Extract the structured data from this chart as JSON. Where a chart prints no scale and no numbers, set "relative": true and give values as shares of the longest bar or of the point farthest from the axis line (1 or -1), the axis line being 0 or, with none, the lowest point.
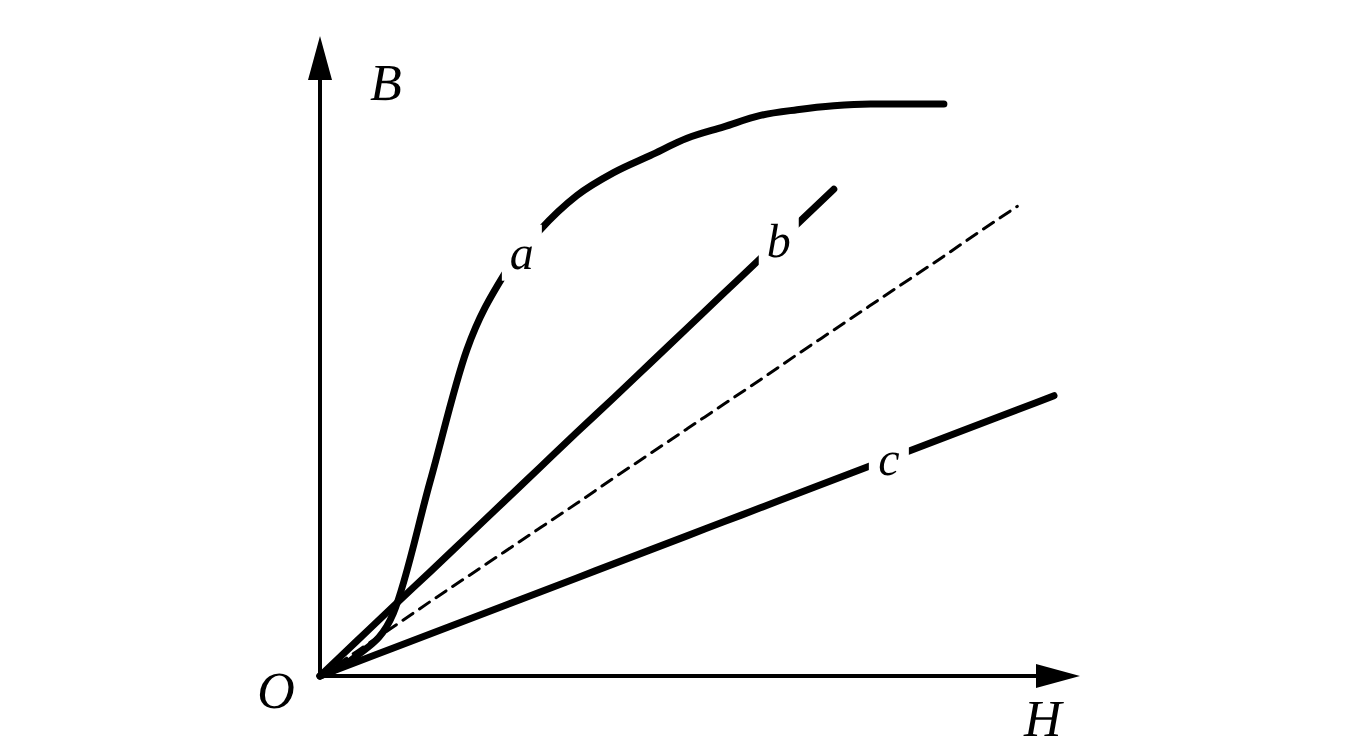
{
  "chart_data": {
    "type": "line",
    "relative": true,
    "xlabel": "H",
    "ylabel": "B",
    "annotations": [
      "O"
    ],
    "marker": "none",
    "categories": [
      null,
      null,
      null,
      null,
      null,
      null,
      null,
      null,
      null,
      null,
      null,
      null,
      null,
      null,
      null,
      null,
      null,
      null,
      null,
      null,
      null
    ],
    "series": [
      {
        "name": "a",
        "color": "#000000",
        "values": [
          0,
          0.035,
          0.11,
          0.34,
          0.57,
          0.7,
          0.78,
          0.84,
          0.88,
          0.91,
          0.94,
          0.96,
          0.98,
          0.99,
          0.997,
          1,
          1,
          1,
          null,
          null,
          null
        ]
      },
      {
        "name": "b",
        "color": "#000000",
        "values": [
          0,
          0.061,
          0.122,
          0.182,
          0.243,
          0.304,
          0.365,
          0.426,
          0.486,
          0.547,
          0.608,
          0.669,
          0.73,
          0.79,
          0.851,
          null,
          null,
          null,
          null,
          null,
          null
        ]
      },
      {
        "color": "#000000",
        "line_style": "dashed",
        "values": [
          0,
          0.043,
          0.086,
          0.13,
          0.173,
          0.216,
          0.259,
          0.302,
          0.346,
          0.389,
          0.432,
          0.475,
          0.518,
          0.562,
          0.605,
          0.648,
          0.691,
          0.734,
          0.778,
          0.821,
          null
        ]
      },
      {
        "name": "c",
        "color": "#000000",
        "values": [
          0,
          0.0245,
          0.049,
          0.0735,
          0.098,
          0.1225,
          0.147,
          0.1715,
          0.196,
          0.2205,
          0.245,
          0.2695,
          0.294,
          0.3185,
          0.343,
          0.3675,
          0.392,
          0.4165,
          0.441,
          0.4655,
          0.49
        ]
      }
    ]
  }
}
